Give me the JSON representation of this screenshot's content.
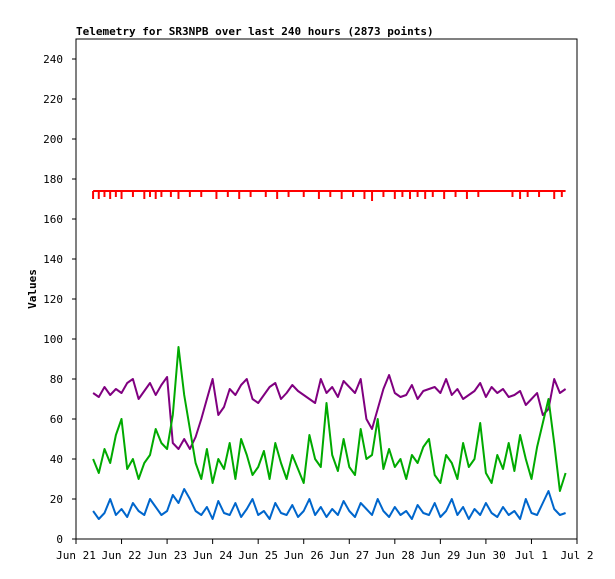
{
  "chart_data": {
    "type": "line",
    "title": "Telemetry for SR3NPB over last 240 hours (2873 points)",
    "xlabel": "",
    "ylabel": "Values",
    "ylim": [
      0,
      250
    ],
    "yticks": [
      0,
      20,
      40,
      60,
      80,
      100,
      120,
      140,
      160,
      180,
      200,
      220,
      240
    ],
    "xlim": [
      "2024-06-21T00:00",
      "2024-07-02T00:00"
    ],
    "xticks": [
      {
        "date": "2024-06-21T00:00",
        "label": "Jun 21"
      },
      {
        "date": "2024-06-22T00:00",
        "label": "Jun 22"
      },
      {
        "date": "2024-06-23T00:00",
        "label": "Jun 23"
      },
      {
        "date": "2024-06-24T00:00",
        "label": "Jun 24"
      },
      {
        "date": "2024-06-25T00:00",
        "label": "Jun 25"
      },
      {
        "date": "2024-06-26T00:00",
        "label": "Jun 26"
      },
      {
        "date": "2024-06-27T00:00",
        "label": "Jun 27"
      },
      {
        "date": "2024-06-28T00:00",
        "label": "Jun 28"
      },
      {
        "date": "2024-06-29T00:00",
        "label": "Jun 29"
      },
      {
        "date": "2024-06-30T00:00",
        "label": "Jun 30"
      },
      {
        "date": "2024-07-01T00:00",
        "label": "Jul 1"
      },
      {
        "date": "2024-07-02T00:00",
        "label": "Jul 2"
      }
    ],
    "grid": false,
    "legend": "none",
    "series": [
      {
        "color": "#ff0000",
        "style": "step",
        "x": [
          "2024-06-21T09:00",
          "2024-06-22T00:00",
          "2024-06-22T12:00",
          "2024-06-23T00:00",
          "2024-06-23T12:00",
          "2024-06-24T00:00",
          "2024-06-24T12:00",
          "2024-06-25T00:00",
          "2024-06-25T12:00",
          "2024-06-26T00:00",
          "2024-06-26T12:00",
          "2024-06-27T00:00",
          "2024-06-27T12:00",
          "2024-06-28T00:00",
          "2024-06-28T12:00",
          "2024-06-29T00:00",
          "2024-06-29T12:00",
          "2024-06-30T00:00",
          "2024-06-30T12:00",
          "2024-07-01T00:00",
          "2024-07-01T12:00",
          "2024-07-01T18:00"
        ],
        "values": [
          174,
          174,
          174,
          174,
          174,
          174,
          174,
          174,
          174,
          174,
          174,
          174,
          174,
          174,
          174,
          174,
          174,
          174,
          174,
          174,
          174,
          174
        ],
        "dips": [
          [
            "2024-06-21T09:00",
            170
          ],
          [
            "2024-06-21T12:00",
            170
          ],
          [
            "2024-06-21T15:00",
            171
          ],
          [
            "2024-06-21T18:00",
            170
          ],
          [
            "2024-06-21T21:00",
            171
          ],
          [
            "2024-06-22T00:00",
            170
          ],
          [
            "2024-06-22T06:00",
            171
          ],
          [
            "2024-06-22T12:00",
            170
          ],
          [
            "2024-06-22T15:00",
            171
          ],
          [
            "2024-06-22T18:00",
            170
          ],
          [
            "2024-06-22T21:00",
            171
          ],
          [
            "2024-06-23T02:00",
            171
          ],
          [
            "2024-06-23T06:00",
            170
          ],
          [
            "2024-06-23T12:00",
            171
          ],
          [
            "2024-06-23T18:00",
            171
          ],
          [
            "2024-06-24T02:00",
            170
          ],
          [
            "2024-06-24T08:00",
            171
          ],
          [
            "2024-06-24T14:00",
            170
          ],
          [
            "2024-06-24T20:00",
            171
          ],
          [
            "2024-06-25T04:00",
            171
          ],
          [
            "2024-06-25T10:00",
            170
          ],
          [
            "2024-06-25T16:00",
            171
          ],
          [
            "2024-06-26T00:00",
            171
          ],
          [
            "2024-06-26T08:00",
            170
          ],
          [
            "2024-06-26T14:00",
            171
          ],
          [
            "2024-06-26T20:00",
            170
          ],
          [
            "2024-06-27T02:00",
            171
          ],
          [
            "2024-06-27T08:00",
            170
          ],
          [
            "2024-06-27T12:00",
            169
          ],
          [
            "2024-06-27T18:00",
            171
          ],
          [
            "2024-06-28T00:00",
            170
          ],
          [
            "2024-06-28T04:00",
            171
          ],
          [
            "2024-06-28T08:00",
            170
          ],
          [
            "2024-06-28T12:00",
            171
          ],
          [
            "2024-06-28T16:00",
            170
          ],
          [
            "2024-06-28T20:00",
            171
          ],
          [
            "2024-06-29T02:00",
            170
          ],
          [
            "2024-06-29T08:00",
            171
          ],
          [
            "2024-06-29T14:00",
            170
          ],
          [
            "2024-06-29T20:00",
            171
          ],
          [
            "2024-06-30T14:00",
            171
          ],
          [
            "2024-06-30T18:00",
            170
          ],
          [
            "2024-06-30T22:00",
            171
          ],
          [
            "2024-07-01T04:00",
            171
          ],
          [
            "2024-07-01T12:00",
            170
          ],
          [
            "2024-07-01T16:00",
            171
          ]
        ]
      },
      {
        "color": "#800080",
        "style": "line",
        "x": [
          "2024-06-21T09:00",
          "2024-06-21T12:00",
          "2024-06-21T15:00",
          "2024-06-21T18:00",
          "2024-06-21T21:00",
          "2024-06-22T00:00",
          "2024-06-22T03:00",
          "2024-06-22T06:00",
          "2024-06-22T09:00",
          "2024-06-22T12:00",
          "2024-06-22T15:00",
          "2024-06-22T18:00",
          "2024-06-22T21:00",
          "2024-06-23T00:00",
          "2024-06-23T03:00",
          "2024-06-23T06:00",
          "2024-06-23T09:00",
          "2024-06-23T12:00",
          "2024-06-23T15:00",
          "2024-06-23T18:00",
          "2024-06-23T21:00",
          "2024-06-24T00:00",
          "2024-06-24T03:00",
          "2024-06-24T06:00",
          "2024-06-24T09:00",
          "2024-06-24T12:00",
          "2024-06-24T15:00",
          "2024-06-24T18:00",
          "2024-06-24T21:00",
          "2024-06-25T00:00",
          "2024-06-25T03:00",
          "2024-06-25T06:00",
          "2024-06-25T09:00",
          "2024-06-25T12:00",
          "2024-06-25T15:00",
          "2024-06-25T18:00",
          "2024-06-25T21:00",
          "2024-06-26T00:00",
          "2024-06-26T03:00",
          "2024-06-26T06:00",
          "2024-06-26T09:00",
          "2024-06-26T12:00",
          "2024-06-26T15:00",
          "2024-06-26T18:00",
          "2024-06-26T21:00",
          "2024-06-27T00:00",
          "2024-06-27T03:00",
          "2024-06-27T06:00",
          "2024-06-27T09:00",
          "2024-06-27T12:00",
          "2024-06-27T15:00",
          "2024-06-27T18:00",
          "2024-06-27T21:00",
          "2024-06-28T00:00",
          "2024-06-28T03:00",
          "2024-06-28T06:00",
          "2024-06-28T09:00",
          "2024-06-28T12:00",
          "2024-06-28T15:00",
          "2024-06-28T18:00",
          "2024-06-28T21:00",
          "2024-06-29T00:00",
          "2024-06-29T03:00",
          "2024-06-29T06:00",
          "2024-06-29T09:00",
          "2024-06-29T12:00",
          "2024-06-29T15:00",
          "2024-06-29T18:00",
          "2024-06-29T21:00",
          "2024-06-30T00:00",
          "2024-06-30T03:00",
          "2024-06-30T06:00",
          "2024-06-30T09:00",
          "2024-06-30T12:00",
          "2024-06-30T15:00",
          "2024-06-30T18:00",
          "2024-06-30T21:00",
          "2024-07-01T00:00",
          "2024-07-01T03:00",
          "2024-07-01T06:00",
          "2024-07-01T09:00",
          "2024-07-01T12:00",
          "2024-07-01T15:00",
          "2024-07-01T18:00"
        ],
        "values": [
          73,
          71,
          76,
          72,
          75,
          73,
          78,
          80,
          70,
          74,
          78,
          72,
          77,
          81,
          48,
          45,
          50,
          45,
          51,
          60,
          70,
          80,
          62,
          66,
          75,
          72,
          77,
          80,
          70,
          68,
          72,
          76,
          78,
          70,
          73,
          77,
          74,
          72,
          70,
          68,
          80,
          73,
          76,
          71,
          79,
          76,
          73,
          80,
          60,
          55,
          65,
          75,
          82,
          73,
          71,
          72,
          77,
          70,
          74,
          75,
          76,
          73,
          80,
          72,
          75,
          70,
          72,
          74,
          78,
          71,
          76,
          73,
          75,
          71,
          72,
          74,
          67,
          70,
          73,
          62,
          65,
          80,
          73,
          75
        ]
      },
      {
        "color": "#00aa00",
        "style": "line",
        "x": [
          "2024-06-21T09:00",
          "2024-06-21T12:00",
          "2024-06-21T15:00",
          "2024-06-21T18:00",
          "2024-06-21T21:00",
          "2024-06-22T00:00",
          "2024-06-22T03:00",
          "2024-06-22T06:00",
          "2024-06-22T09:00",
          "2024-06-22T12:00",
          "2024-06-22T15:00",
          "2024-06-22T18:00",
          "2024-06-22T21:00",
          "2024-06-23T00:00",
          "2024-06-23T03:00",
          "2024-06-23T06:00",
          "2024-06-23T09:00",
          "2024-06-23T12:00",
          "2024-06-23T15:00",
          "2024-06-23T18:00",
          "2024-06-23T21:00",
          "2024-06-24T00:00",
          "2024-06-24T03:00",
          "2024-06-24T06:00",
          "2024-06-24T09:00",
          "2024-06-24T12:00",
          "2024-06-24T15:00",
          "2024-06-24T18:00",
          "2024-06-24T21:00",
          "2024-06-25T00:00",
          "2024-06-25T03:00",
          "2024-06-25T06:00",
          "2024-06-25T09:00",
          "2024-06-25T12:00",
          "2024-06-25T15:00",
          "2024-06-25T18:00",
          "2024-06-25T21:00",
          "2024-06-26T00:00",
          "2024-06-26T03:00",
          "2024-06-26T06:00",
          "2024-06-26T09:00",
          "2024-06-26T12:00",
          "2024-06-26T15:00",
          "2024-06-26T18:00",
          "2024-06-26T21:00",
          "2024-06-27T00:00",
          "2024-06-27T03:00",
          "2024-06-27T06:00",
          "2024-06-27T09:00",
          "2024-06-27T12:00",
          "2024-06-27T15:00",
          "2024-06-27T18:00",
          "2024-06-27T21:00",
          "2024-06-28T00:00",
          "2024-06-28T03:00",
          "2024-06-28T06:00",
          "2024-06-28T09:00",
          "2024-06-28T12:00",
          "2024-06-28T15:00",
          "2024-06-28T18:00",
          "2024-06-28T21:00",
          "2024-06-29T00:00",
          "2024-06-29T03:00",
          "2024-06-29T06:00",
          "2024-06-29T09:00",
          "2024-06-29T12:00",
          "2024-06-29T15:00",
          "2024-06-29T18:00",
          "2024-06-29T21:00",
          "2024-06-30T00:00",
          "2024-06-30T03:00",
          "2024-06-30T06:00",
          "2024-06-30T09:00",
          "2024-06-30T12:00",
          "2024-06-30T15:00",
          "2024-06-30T18:00",
          "2024-06-30T21:00",
          "2024-07-01T00:00",
          "2024-07-01T03:00",
          "2024-07-01T06:00",
          "2024-07-01T09:00",
          "2024-07-01T12:00",
          "2024-07-01T15:00",
          "2024-07-01T18:00"
        ],
        "values": [
          40,
          33,
          45,
          38,
          52,
          60,
          35,
          40,
          30,
          38,
          42,
          55,
          48,
          45,
          62,
          96,
          72,
          55,
          38,
          30,
          45,
          28,
          40,
          35,
          48,
          30,
          50,
          42,
          32,
          36,
          44,
          30,
          48,
          38,
          30,
          42,
          35,
          28,
          52,
          40,
          36,
          68,
          42,
          34,
          50,
          36,
          32,
          55,
          40,
          42,
          60,
          35,
          45,
          36,
          40,
          30,
          42,
          38,
          46,
          50,
          32,
          28,
          42,
          38,
          30,
          48,
          36,
          40,
          58,
          33,
          28,
          42,
          35,
          48,
          34,
          52,
          40,
          30,
          46,
          58,
          70,
          48,
          24,
          33
        ]
      },
      {
        "color": "#0066cc",
        "style": "line",
        "x": [
          "2024-06-21T09:00",
          "2024-06-21T12:00",
          "2024-06-21T15:00",
          "2024-06-21T18:00",
          "2024-06-21T21:00",
          "2024-06-22T00:00",
          "2024-06-22T03:00",
          "2024-06-22T06:00",
          "2024-06-22T09:00",
          "2024-06-22T12:00",
          "2024-06-22T15:00",
          "2024-06-22T18:00",
          "2024-06-22T21:00",
          "2024-06-23T00:00",
          "2024-06-23T03:00",
          "2024-06-23T06:00",
          "2024-06-23T09:00",
          "2024-06-23T12:00",
          "2024-06-23T15:00",
          "2024-06-23T18:00",
          "2024-06-23T21:00",
          "2024-06-24T00:00",
          "2024-06-24T03:00",
          "2024-06-24T06:00",
          "2024-06-24T09:00",
          "2024-06-24T12:00",
          "2024-06-24T15:00",
          "2024-06-24T18:00",
          "2024-06-24T21:00",
          "2024-06-25T00:00",
          "2024-06-25T03:00",
          "2024-06-25T06:00",
          "2024-06-25T09:00",
          "2024-06-25T12:00",
          "2024-06-25T15:00",
          "2024-06-25T18:00",
          "2024-06-25T21:00",
          "2024-06-26T00:00",
          "2024-06-26T03:00",
          "2024-06-26T06:00",
          "2024-06-26T09:00",
          "2024-06-26T12:00",
          "2024-06-26T15:00",
          "2024-06-26T18:00",
          "2024-06-26T21:00",
          "2024-06-27T00:00",
          "2024-06-27T03:00",
          "2024-06-27T06:00",
          "2024-06-27T09:00",
          "2024-06-27T12:00",
          "2024-06-27T15:00",
          "2024-06-27T18:00",
          "2024-06-27T21:00",
          "2024-06-28T00:00",
          "2024-06-28T03:00",
          "2024-06-28T06:00",
          "2024-06-28T09:00",
          "2024-06-28T12:00",
          "2024-06-28T15:00",
          "2024-06-28T18:00",
          "2024-06-28T21:00",
          "2024-06-29T00:00",
          "2024-06-29T03:00",
          "2024-06-29T06:00",
          "2024-06-29T09:00",
          "2024-06-29T12:00",
          "2024-06-29T15:00",
          "2024-06-29T18:00",
          "2024-06-29T21:00",
          "2024-06-30T00:00",
          "2024-06-30T03:00",
          "2024-06-30T06:00",
          "2024-06-30T09:00",
          "2024-06-30T12:00",
          "2024-06-30T15:00",
          "2024-06-30T18:00",
          "2024-06-30T21:00",
          "2024-07-01T00:00",
          "2024-07-01T03:00",
          "2024-07-01T06:00",
          "2024-07-01T09:00",
          "2024-07-01T12:00",
          "2024-07-01T15:00",
          "2024-07-01T18:00"
        ],
        "values": [
          14,
          10,
          13,
          20,
          12,
          15,
          11,
          18,
          14,
          12,
          20,
          16,
          12,
          14,
          22,
          18,
          25,
          20,
          14,
          12,
          16,
          10,
          19,
          13,
          12,
          18,
          11,
          15,
          20,
          12,
          14,
          10,
          18,
          13,
          12,
          17,
          11,
          14,
          20,
          12,
          16,
          11,
          15,
          12,
          19,
          14,
          11,
          18,
          15,
          12,
          20,
          14,
          11,
          16,
          12,
          14,
          10,
          17,
          13,
          12,
          18,
          11,
          14,
          20,
          12,
          16,
          10,
          15,
          12,
          18,
          13,
          11,
          16,
          12,
          14,
          10,
          20,
          13,
          12,
          18,
          24,
          15,
          12,
          13
        ]
      }
    ]
  }
}
